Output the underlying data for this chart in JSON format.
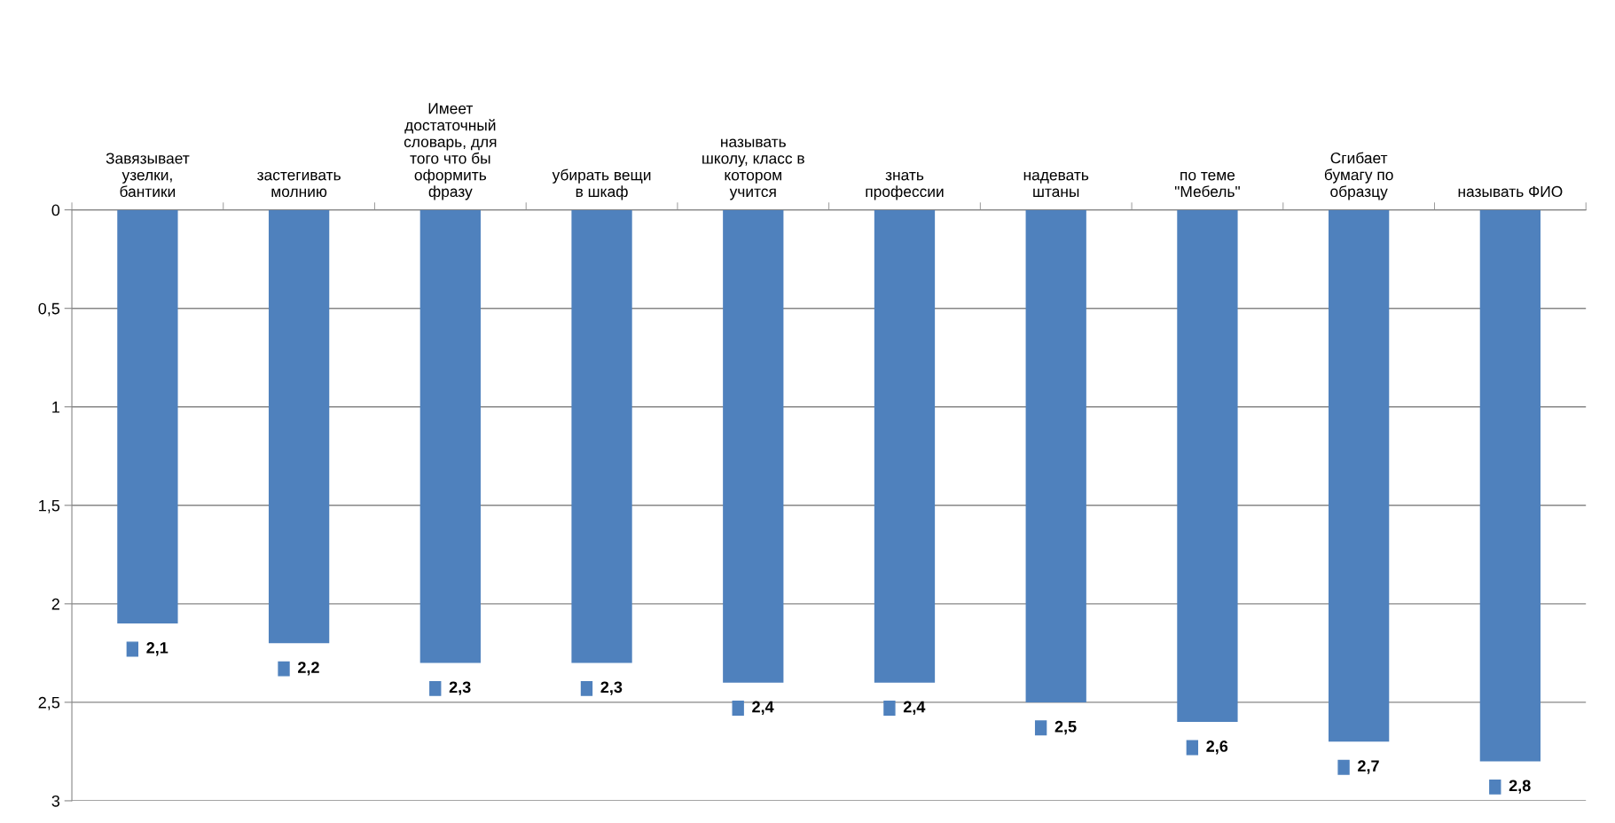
{
  "chart_data": {
    "type": "bar",
    "categories": [
      "Завязывает\nузелки,\nбантики",
      "застегивать\nмолнию",
      "Имеет\nдостаточный\nсловарь, для\nтого что бы\nоформить\nфразу",
      "убирать вещи\nв шкаф",
      "называть\nшколу, класс в\nкотором\nучится",
      "знать\nпрофессии",
      "надевать\nштаны",
      "по теме\n\"Мебель\"",
      "Сгибает\nбумагу по\nобразцу",
      "называть ФИО"
    ],
    "values": [
      2.1,
      2.2,
      2.3,
      2.3,
      2.4,
      2.4,
      2.5,
      2.6,
      2.7,
      2.8
    ],
    "value_labels": [
      "2,1",
      "2,2",
      "2,3",
      "2,3",
      "2,4",
      "2,4",
      "2,5",
      "2,6",
      "2,7",
      "2,8"
    ],
    "color": "#4f81bd",
    "ylim": [
      3,
      0
    ],
    "yticks": [
      0,
      {
        "value": 0.5,
        "label": "0,5"
      },
      1,
      {
        "value": 1.5,
        "label": "1,5"
      },
      2,
      {
        "value": 2.5,
        "label": "2,5"
      },
      3
    ],
    "grid": "y"
  }
}
